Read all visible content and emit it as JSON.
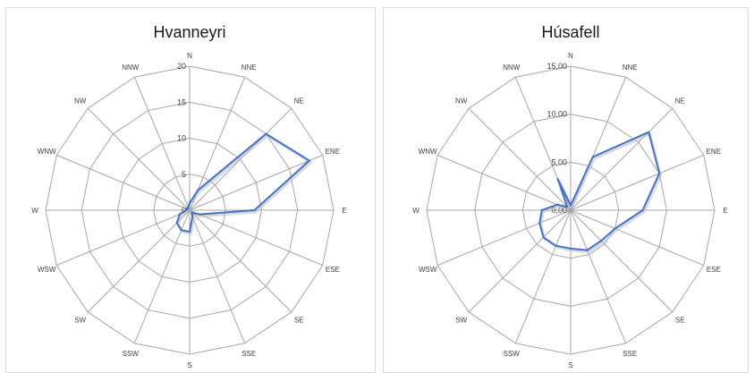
{
  "chart_data": [
    {
      "type": "radar",
      "title": "Hvanneyri",
      "directions": [
        "N",
        "NNE",
        "NE",
        "ENE",
        "E",
        "ESE",
        "SE",
        "SSE",
        "S",
        "SSW",
        "SW",
        "WSW",
        "W",
        "WNW",
        "NW",
        "NNW"
      ],
      "tick_labels": [
        "0",
        "5",
        "10",
        "15",
        "20"
      ],
      "rmax": 20,
      "series": [
        {
          "values": [
            1,
            3,
            15,
            18,
            9,
            1.5,
            0.5,
            1,
            3,
            3,
            2.5,
            1.5,
            0.5,
            0.5,
            0.3,
            0.5
          ]
        }
      ]
    },
    {
      "type": "radar",
      "title": "Húsafell",
      "directions": [
        "N",
        "NNE",
        "NE",
        "ENE",
        "E",
        "ESE",
        "SE",
        "SSE",
        "S",
        "SSW",
        "SW",
        "WSW",
        "W",
        "WNW",
        "NW",
        "NNW"
      ],
      "tick_labels": [
        "0,00",
        "5,00",
        "10,00",
        "15,00"
      ],
      "rmax": 15,
      "series": [
        {
          "values": [
            0.5,
            6,
            11.5,
            10,
            7.5,
            5,
            4.5,
            4.5,
            4,
            4,
            4,
            3.5,
            3,
            1.5,
            0.5,
            3.5
          ]
        }
      ]
    }
  ],
  "colors": {
    "series": "#4472c4",
    "grid": "#a6a6a6",
    "axis": "#a6a6a6"
  }
}
